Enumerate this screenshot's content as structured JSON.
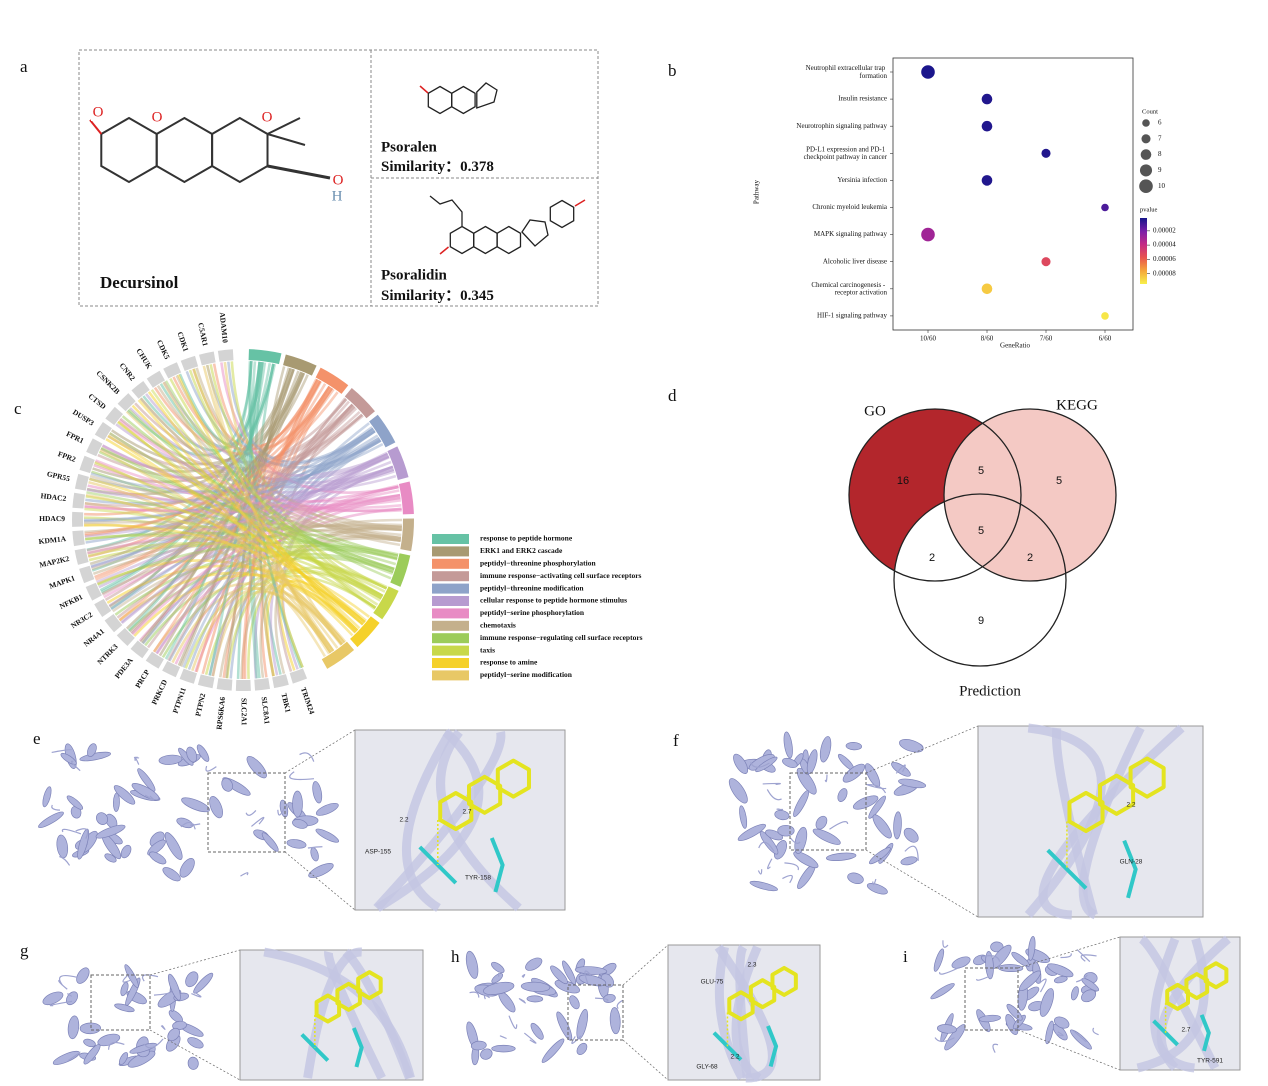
{
  "panel_labels": [
    "a",
    "b",
    "c",
    "d",
    "e",
    "f",
    "g",
    "h",
    "i"
  ],
  "panel_a": {
    "query": {
      "name": "Decursinol",
      "atoms": [
        "O",
        "O",
        "O",
        "O",
        "H"
      ]
    },
    "hits": [
      {
        "name": "Psoralen",
        "similarity_label": "Similarity：",
        "similarity": 0.378
      },
      {
        "name": "Psoralidin",
        "similarity_label": "Similarity：",
        "similarity": 0.345
      }
    ]
  },
  "chart_data": {
    "type": "dot",
    "y_title": "Pathway",
    "x_title": "GeneRatio",
    "categories": [
      "Neutrophil extracellular trap formation",
      "Insulin resistance",
      "Neurotrophin signaling pathway",
      "PD-L1 expression and PD-1 checkpoint pathway in cancer",
      "Yersinia infection",
      "Chronic myeloid leukemia",
      "MAPK signaling pathway",
      "Alcoholic liver disease",
      "Chemical carcinogenesis - receptor activation",
      "HIF-1 signaling pathway"
    ],
    "x_categories": [
      "10/60",
      "8/60",
      "7/60",
      "6/60"
    ],
    "x": [
      "10/60",
      "8/60",
      "8/60",
      "7/60",
      "8/60",
      "6/60",
      "10/60",
      "7/60",
      "8/60",
      "6/60"
    ],
    "count": [
      10,
      8,
      8,
      7,
      8,
      6,
      10,
      7,
      8,
      6
    ],
    "pvalue": [
      3e-06,
      4e-06,
      4e-06,
      4e-06,
      4e-06,
      1.2e-05,
      3e-05,
      5.2e-05,
      8.5e-05,
      9.2e-05
    ],
    "size_legend": {
      "title": "Count",
      "ticks": [
        6,
        7,
        8,
        9,
        10
      ]
    },
    "color_legend": {
      "title": "pvalue",
      "lim": [
        2e-06,
        9.45e-05
      ],
      "ticks": [
        2e-05,
        4e-05,
        6e-05,
        8e-05
      ],
      "colors": [
        "#16168a",
        "#7a1fa8",
        "#c42a85",
        "#e8544e",
        "#f5a63a",
        "#f7f04a"
      ]
    }
  },
  "panel_c": {
    "genes": [
      "TRIM24",
      "TBK1",
      "SLC8A1",
      "SLC2A1",
      "RPS6KA6",
      "PTPN2",
      "PTPN11",
      "PRKCD",
      "PRCP",
      "PDE3A",
      "NTRK3",
      "NR4A1",
      "NR3C2",
      "NFKB1",
      "MAPK1",
      "MAP2K2",
      "KDM1A",
      "HDAC9",
      "HDAC2",
      "GPR55",
      "FPR2",
      "FPR1",
      "DUSP3",
      "CTSD",
      "CSNK2B",
      "CNR2",
      "CHUK",
      "CDK5",
      "CDK1",
      "C5AR1",
      "ADAM10"
    ],
    "terms": [
      {
        "name": "response to peptide hormone",
        "color": "#66c2a5"
      },
      {
        "name": "ERK1 and ERK2 cascade",
        "color": "#a89a72"
      },
      {
        "name": "peptidyl−threonine phosphorylation",
        "color": "#f4926a"
      },
      {
        "name": "immune response−activating cell surface receptors",
        "color": "#c49a98"
      },
      {
        "name": "peptidyl−threonine modification",
        "color": "#8ea3c9"
      },
      {
        "name": "cellular response to peptide hormone stimulus",
        "color": "#b79bd0"
      },
      {
        "name": "peptidyl−serine phosphorylation",
        "color": "#e88bc4"
      },
      {
        "name": "chemotaxis",
        "color": "#c4b08c"
      },
      {
        "name": "immune response−regulating cell surface receptors",
        "color": "#9ccc5a"
      },
      {
        "name": "taxis",
        "color": "#c8d84a"
      },
      {
        "name": "response to amine",
        "color": "#f5d12a"
      },
      {
        "name": "peptidyl−serine modification",
        "color": "#e8c866"
      }
    ]
  },
  "panel_d": {
    "sets": [
      "GO",
      "KEGG",
      "Prediction"
    ],
    "counts": [
      16,
      5,
      5,
      5,
      2,
      2,
      9
    ]
  },
  "docking": {
    "e": [
      "ASP-155",
      "TYR-158",
      "2.2",
      "2.7"
    ],
    "f": [
      "2.2",
      "GLN-28"
    ],
    "h": [
      "GLU-75",
      "2.3",
      "GLY-68",
      "2.2"
    ],
    "i": [
      "2.7",
      "TYR-591"
    ]
  }
}
